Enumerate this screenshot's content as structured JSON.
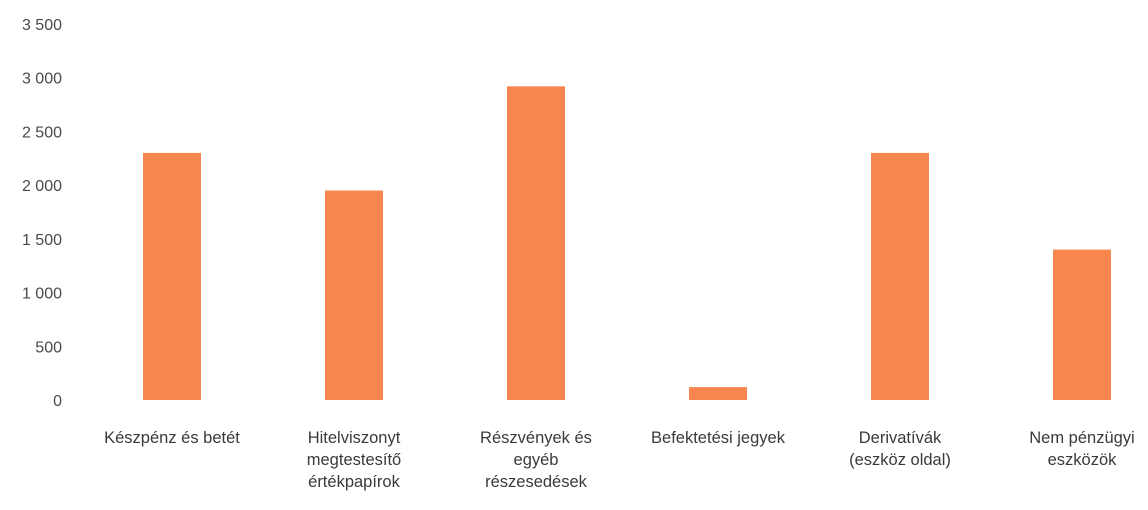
{
  "chart_data": {
    "type": "bar",
    "title": "",
    "xlabel": "",
    "ylabel": "",
    "categories": [
      [
        "Készpénz és betét"
      ],
      [
        "Hitelviszonyt",
        "megtestesítő",
        "értékpapírok"
      ],
      [
        "Részvények és",
        "egyéb",
        "részesedések"
      ],
      [
        "Befektetési jegyek"
      ],
      [
        "Derivatívák",
        "(eszköz oldal)"
      ],
      [
        "Nem pénzügyi",
        "eszközök"
      ]
    ],
    "values": [
      2300,
      1950,
      2920,
      120,
      2300,
      1400
    ],
    "ylim": [
      0,
      3500
    ],
    "yticks": [
      0,
      500,
      1000,
      1500,
      2000,
      2500,
      3000,
      3500
    ],
    "ytick_labels": [
      "0",
      "500",
      "1 000",
      "1 500",
      "2 000",
      "2 500",
      "3 000",
      "3 500"
    ],
    "grid": false,
    "legend": "none",
    "bar_color": "#f7874f"
  }
}
